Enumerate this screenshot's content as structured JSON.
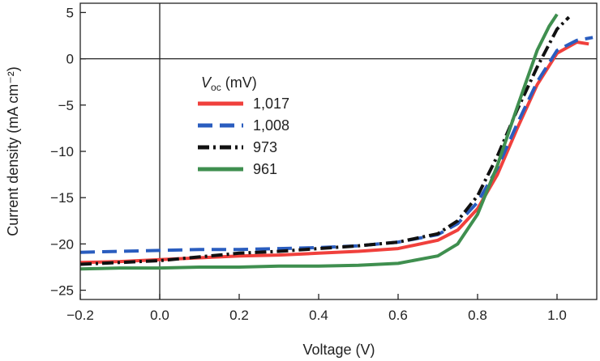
{
  "chart_data": {
    "type": "line",
    "xlabel": "Voltage (V)",
    "ylabel": "Current density (mA cm⁻²)",
    "xlim": [
      -0.2,
      1.1
    ],
    "ylim": [
      -26,
      6
    ],
    "x_ticks": [
      -0.2,
      0.0,
      0.2,
      0.4,
      0.6,
      0.8,
      1.0
    ],
    "x_tick_labels": [
      "−0.2",
      "0.0",
      "0.2",
      "0.4",
      "0.6",
      "0.8",
      "1.0"
    ],
    "y_ticks": [
      5,
      0,
      -5,
      -10,
      -15,
      -20,
      -25
    ],
    "y_tick_labels": [
      "5",
      "0",
      "−5",
      "−10",
      "−15",
      "−20",
      "−25"
    ],
    "zero_lines": true,
    "legend": {
      "title_main": "V",
      "title_sub": "oc",
      "title_unit": " (mV)",
      "placement": "center-left"
    },
    "colors": {
      "red": "#f0403c",
      "blue": "#2a5dbf",
      "black": "#111111",
      "green": "#3f8f4f"
    },
    "series": [
      {
        "name": "1,017",
        "color": "#f0403c",
        "dash": "solid",
        "x": [
          -0.2,
          -0.1,
          0.0,
          0.1,
          0.2,
          0.3,
          0.4,
          0.5,
          0.6,
          0.7,
          0.75,
          0.8,
          0.85,
          0.9,
          0.95,
          1.0,
          1.05,
          1.08
        ],
        "y": [
          -22.0,
          -21.9,
          -21.7,
          -21.5,
          -21.3,
          -21.2,
          -21.0,
          -20.8,
          -20.5,
          -19.6,
          -18.5,
          -16.2,
          -12.5,
          -7.5,
          -2.8,
          0.6,
          1.8,
          1.6
        ]
      },
      {
        "name": "1,008",
        "color": "#2a5dbf",
        "dash": "dashed",
        "x": [
          -0.2,
          -0.1,
          0.0,
          0.1,
          0.2,
          0.3,
          0.4,
          0.5,
          0.6,
          0.7,
          0.75,
          0.8,
          0.85,
          0.9,
          0.95,
          1.0,
          1.05,
          1.09
        ],
        "y": [
          -20.9,
          -20.8,
          -20.7,
          -20.6,
          -20.6,
          -20.5,
          -20.4,
          -20.2,
          -19.8,
          -19.0,
          -17.8,
          -15.5,
          -11.8,
          -7.0,
          -2.5,
          0.9,
          2.0,
          2.3
        ]
      },
      {
        "name": "973",
        "color": "#111111",
        "dash": "dashdot",
        "x": [
          -0.2,
          -0.1,
          0.0,
          0.1,
          0.2,
          0.3,
          0.4,
          0.5,
          0.6,
          0.7,
          0.75,
          0.8,
          0.85,
          0.9,
          0.95,
          1.0,
          1.03
        ],
        "y": [
          -22.2,
          -22.0,
          -21.8,
          -21.4,
          -21.0,
          -20.8,
          -20.5,
          -20.2,
          -19.8,
          -18.9,
          -17.5,
          -14.8,
          -10.5,
          -5.5,
          -0.9,
          3.2,
          4.5
        ]
      },
      {
        "name": "961",
        "color": "#3f8f4f",
        "dash": "solid",
        "x": [
          -0.2,
          -0.1,
          0.0,
          0.1,
          0.2,
          0.3,
          0.4,
          0.5,
          0.6,
          0.7,
          0.75,
          0.8,
          0.85,
          0.9,
          0.95,
          0.98,
          1.0
        ],
        "y": [
          -22.7,
          -22.6,
          -22.6,
          -22.5,
          -22.5,
          -22.4,
          -22.4,
          -22.3,
          -22.1,
          -21.3,
          -20.0,
          -16.8,
          -11.5,
          -5.2,
          0.9,
          3.5,
          4.8
        ]
      }
    ]
  }
}
